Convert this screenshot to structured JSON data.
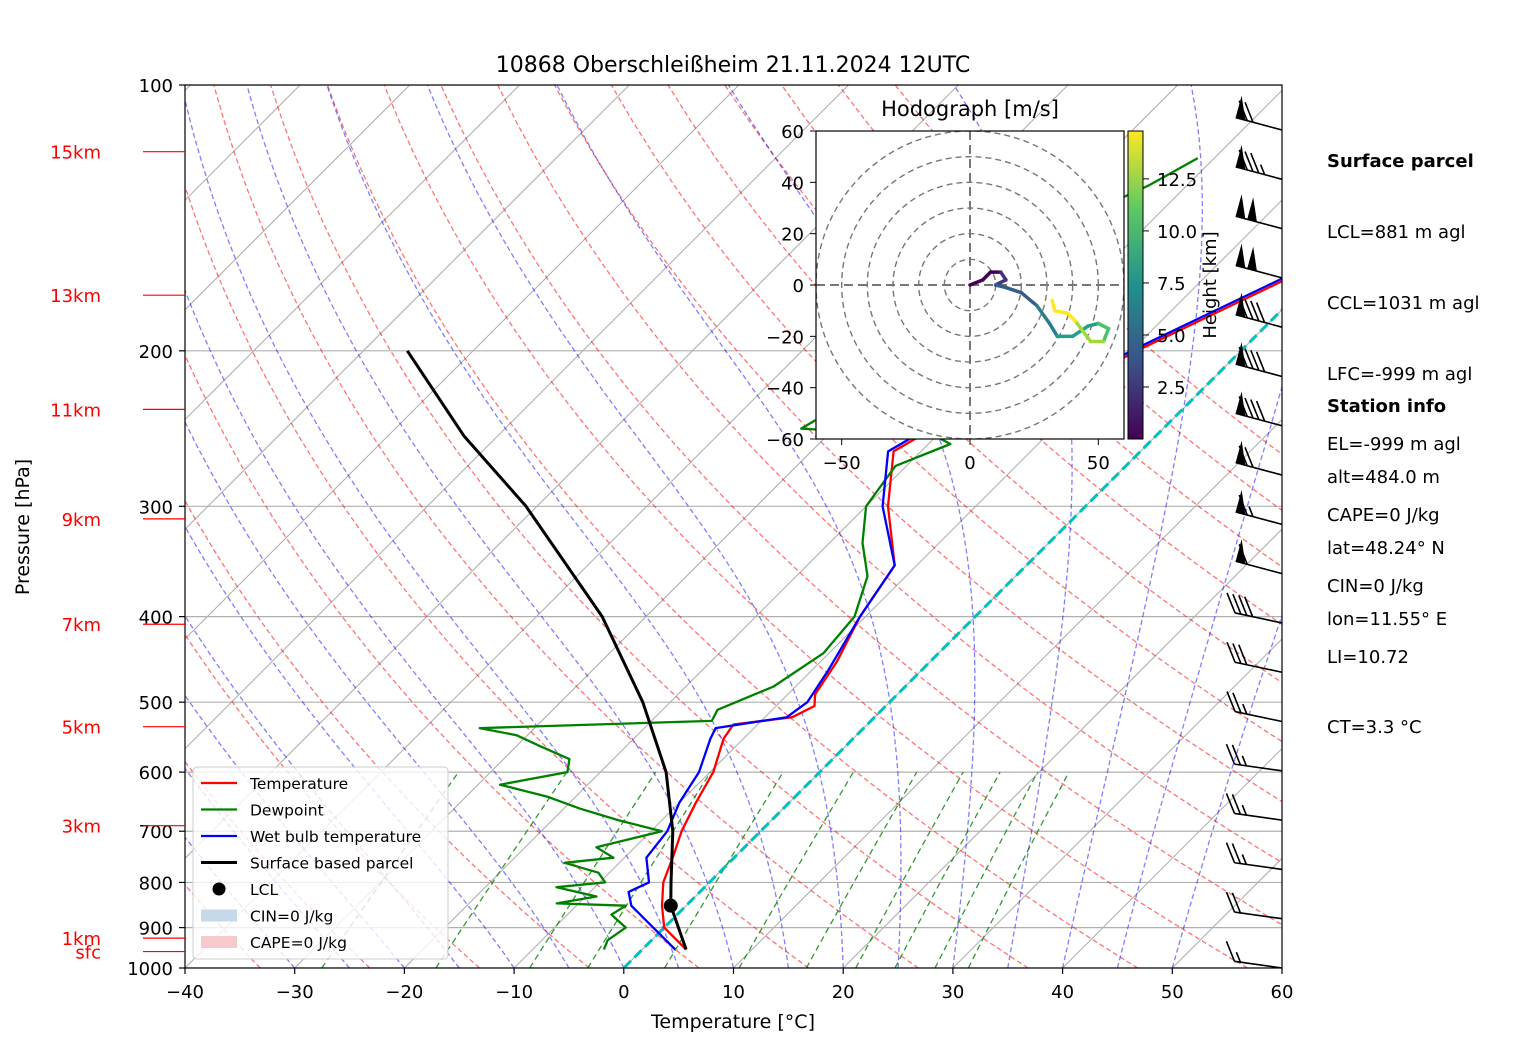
{
  "colors": {
    "temperature": "#ff0000",
    "dewpoint": "#008000",
    "wetbulb": "#0000ff",
    "parcel": "#000000",
    "isotherm_0": "#00c0c0",
    "dry_adiabat": "#ff0000",
    "moist_adiabat": "#0000ff",
    "mixing_ratio": "#008000",
    "height_label": "#ff0000"
  },
  "chart_data": {
    "type": "skew-T log-P",
    "title": "10868 Oberschleißheim 21.11.2024 12UTC",
    "xlabel": "Temperature [°C]",
    "ylabel": "Pressure [hPa]",
    "xlim": [
      -40,
      60
    ],
    "ylim": [
      1000,
      100
    ],
    "yscale": "log",
    "x_ticks": [
      "−40",
      "−30",
      "−20",
      "−10",
      "0",
      "10",
      "20",
      "30",
      "40",
      "50",
      "60"
    ],
    "y_ticks": [
      {
        "p": 1000,
        "label": "1000"
      },
      {
        "p": 900,
        "label": "900"
      },
      {
        "p": 800,
        "label": "800"
      },
      {
        "p": 700,
        "label": "700"
      },
      {
        "p": 600,
        "label": "600"
      },
      {
        "p": 500,
        "label": "500"
      },
      {
        "p": 400,
        "label": "400"
      },
      {
        "p": 300,
        "label": "300"
      },
      {
        "p": 200,
        "label": "200"
      },
      {
        "p": 100,
        "label": "100"
      }
    ],
    "height_labels": [
      {
        "p": 958,
        "label": "sfc"
      },
      {
        "p": 925,
        "label": "1km"
      },
      {
        "p": 690,
        "label": "3km"
      },
      {
        "p": 533,
        "label": "5km"
      },
      {
        "p": 408,
        "label": "7km"
      },
      {
        "p": 310,
        "label": "9km"
      },
      {
        "p": 233,
        "label": "11km"
      },
      {
        "p": 173,
        "label": "13km"
      },
      {
        "p": 119,
        "label": "15km"
      }
    ],
    "grid": true,
    "legend_placement": "lower-left",
    "legend": [
      "Temperature",
      "Dewpoint",
      "Wet bulb temperature",
      "Surface based parcel",
      "LCL",
      "CIN=0 J/kg",
      "CAPE=0 J/kg"
    ],
    "series": [
      {
        "name": "Temperature",
        "points": [
          [
            953,
            4.0
          ],
          [
            900,
            0.0
          ],
          [
            850,
            -2.2
          ],
          [
            800,
            -4.2
          ],
          [
            750,
            -5.6
          ],
          [
            700,
            -7.2
          ],
          [
            650,
            -8.5
          ],
          [
            600,
            -9.7
          ],
          [
            550,
            -11.8
          ],
          [
            530,
            -12.2
          ],
          [
            520,
            -7.5
          ],
          [
            505,
            -6.5
          ],
          [
            490,
            -7.5
          ],
          [
            450,
            -8.5
          ],
          [
            400,
            -10.5
          ],
          [
            350,
            -12.0
          ],
          [
            300,
            -18.0
          ],
          [
            260,
            -22.5
          ],
          [
            240,
            -20.5
          ],
          [
            230,
            -15.5
          ],
          [
            220,
            -12.5
          ],
          [
            200,
            -9.5
          ],
          [
            180,
            -5.5
          ],
          [
            160,
            -1.0
          ],
          [
            140,
            2.5
          ],
          [
            125,
            3.5
          ],
          [
            117,
            5.5
          ]
        ]
      },
      {
        "name": "Dewpoint",
        "points": [
          [
            953,
            -3.5
          ],
          [
            930,
            -4.0
          ],
          [
            900,
            -3.5
          ],
          [
            870,
            -6.0
          ],
          [
            850,
            -5.5
          ],
          [
            845,
            -12.0
          ],
          [
            830,
            -9.0
          ],
          [
            810,
            -13.5
          ],
          [
            800,
            -9.5
          ],
          [
            780,
            -11.0
          ],
          [
            760,
            -15.0
          ],
          [
            750,
            -11.0
          ],
          [
            730,
            -13.5
          ],
          [
            700,
            -9.0
          ],
          [
            680,
            -14.0
          ],
          [
            660,
            -18.5
          ],
          [
            640,
            -22.5
          ],
          [
            620,
            -28.0
          ],
          [
            600,
            -23.0
          ],
          [
            580,
            -24.0
          ],
          [
            560,
            -28.0
          ],
          [
            545,
            -31.0
          ],
          [
            535,
            -35.0
          ],
          [
            525,
            -14.5
          ],
          [
            510,
            -15.0
          ],
          [
            480,
            -12.0
          ],
          [
            440,
            -10.5
          ],
          [
            400,
            -11.0
          ],
          [
            360,
            -13.5
          ],
          [
            330,
            -17.0
          ],
          [
            300,
            -20.0
          ],
          [
            270,
            -21.0
          ],
          [
            255,
            -18.0
          ],
          [
            250,
            -20.0
          ],
          [
            245,
            -33.0
          ],
          [
            235,
            -32.0
          ],
          [
            220,
            -32.0
          ],
          [
            200,
            -31.5
          ],
          [
            180,
            -30.0
          ],
          [
            160,
            -29.0
          ],
          [
            140,
            -26.5
          ],
          [
            130,
            -23.5
          ],
          [
            121,
            -21.5
          ]
        ]
      },
      {
        "name": "Wet bulb temperature",
        "points": [
          [
            953,
            3.0
          ],
          [
            900,
            -1.0
          ],
          [
            850,
            -5.0
          ],
          [
            820,
            -6.5
          ],
          [
            800,
            -5.5
          ],
          [
            750,
            -8.0
          ],
          [
            700,
            -8.5
          ],
          [
            650,
            -10.0
          ],
          [
            600,
            -11.0
          ],
          [
            550,
            -13.0
          ],
          [
            535,
            -13.5
          ],
          [
            520,
            -8.0
          ],
          [
            500,
            -7.5
          ],
          [
            460,
            -8.5
          ],
          [
            400,
            -10.5
          ],
          [
            350,
            -12.0
          ],
          [
            300,
            -18.5
          ],
          [
            260,
            -23.0
          ],
          [
            240,
            -21.0
          ],
          [
            230,
            -16.0
          ],
          [
            220,
            -13.0
          ],
          [
            200,
            -10.0
          ],
          [
            180,
            -6.0
          ],
          [
            160,
            -1.5
          ],
          [
            140,
            2.0
          ],
          [
            125,
            3.0
          ],
          [
            117,
            5.0
          ]
        ]
      },
      {
        "name": "Surface based parcel",
        "points": [
          [
            953,
            4.0
          ],
          [
            850,
            -1.4
          ],
          [
            800,
            -3.5
          ],
          [
            700,
            -8.0
          ],
          [
            600,
            -14.0
          ],
          [
            500,
            -22.5
          ],
          [
            400,
            -34.0
          ],
          [
            300,
            -51.0
          ],
          [
            250,
            -63.0
          ],
          [
            200,
            -76.0
          ]
        ]
      }
    ],
    "lcl": {
      "p": 850,
      "t": -1.4
    },
    "isotherm_0": true,
    "hodograph": {
      "title": "Hodograph [m/s]",
      "xlim": [
        -60,
        60
      ],
      "ylim": [
        -60,
        60
      ],
      "x_ticks": [
        "−50",
        "0",
        "50"
      ],
      "y_ticks": [
        "60",
        "40",
        "20",
        "0",
        "−20",
        "−40",
        "−60"
      ],
      "rings": [
        10,
        20,
        30,
        40,
        50,
        60
      ],
      "colorbar_label": "Height [km]",
      "colorbar_ticks": [
        "2.5",
        "5.0",
        "7.5",
        "10.0",
        "12.5"
      ],
      "points": [
        [
          0,
          0
        ],
        [
          5,
          2
        ],
        [
          8,
          5
        ],
        [
          12,
          5
        ],
        [
          14,
          2
        ],
        [
          10,
          0
        ],
        [
          14,
          -1
        ],
        [
          20,
          -3
        ],
        [
          26,
          -8
        ],
        [
          31,
          -15
        ],
        [
          34,
          -20
        ],
        [
          40,
          -20
        ],
        [
          46,
          -16
        ],
        [
          50,
          -15
        ],
        [
          54,
          -17
        ],
        [
          52,
          -22
        ],
        [
          47,
          -22
        ],
        [
          44,
          -18
        ],
        [
          41,
          -14
        ],
        [
          38,
          -11
        ],
        [
          33,
          -10
        ],
        [
          32,
          -6
        ]
      ]
    },
    "wind_barbs_kt": [
      70,
      85,
      100,
      100,
      90,
      90,
      90,
      70,
      65,
      60,
      40,
      30,
      25,
      25,
      25,
      25,
      20,
      15
    ]
  },
  "surface_parcel": {
    "heading": "Surface parcel",
    "lines": [
      "LCL=881 m agl",
      "CCL=1031 m agl",
      "LFC=-999 m agl",
      "EL=-999 m agl",
      "CAPE=0 J/kg",
      "CIN=0 J/kg",
      "LI=10.72",
      "CT=3.3 °C"
    ]
  },
  "station_info": {
    "heading": "Station info",
    "lines": [
      "alt=484.0 m",
      "lat=48.24° N",
      "lon=11.55° E"
    ]
  }
}
